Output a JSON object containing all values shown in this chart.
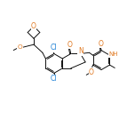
{
  "background": "#ffffff",
  "bond_color": "#000000",
  "figsize": [
    1.52,
    1.52
  ],
  "dpi": 100,
  "lw": 0.65,
  "xlim": [
    0,
    10
  ],
  "ylim": [
    0,
    8
  ],
  "orange": "#e07820",
  "blue": "#1a7fd4"
}
